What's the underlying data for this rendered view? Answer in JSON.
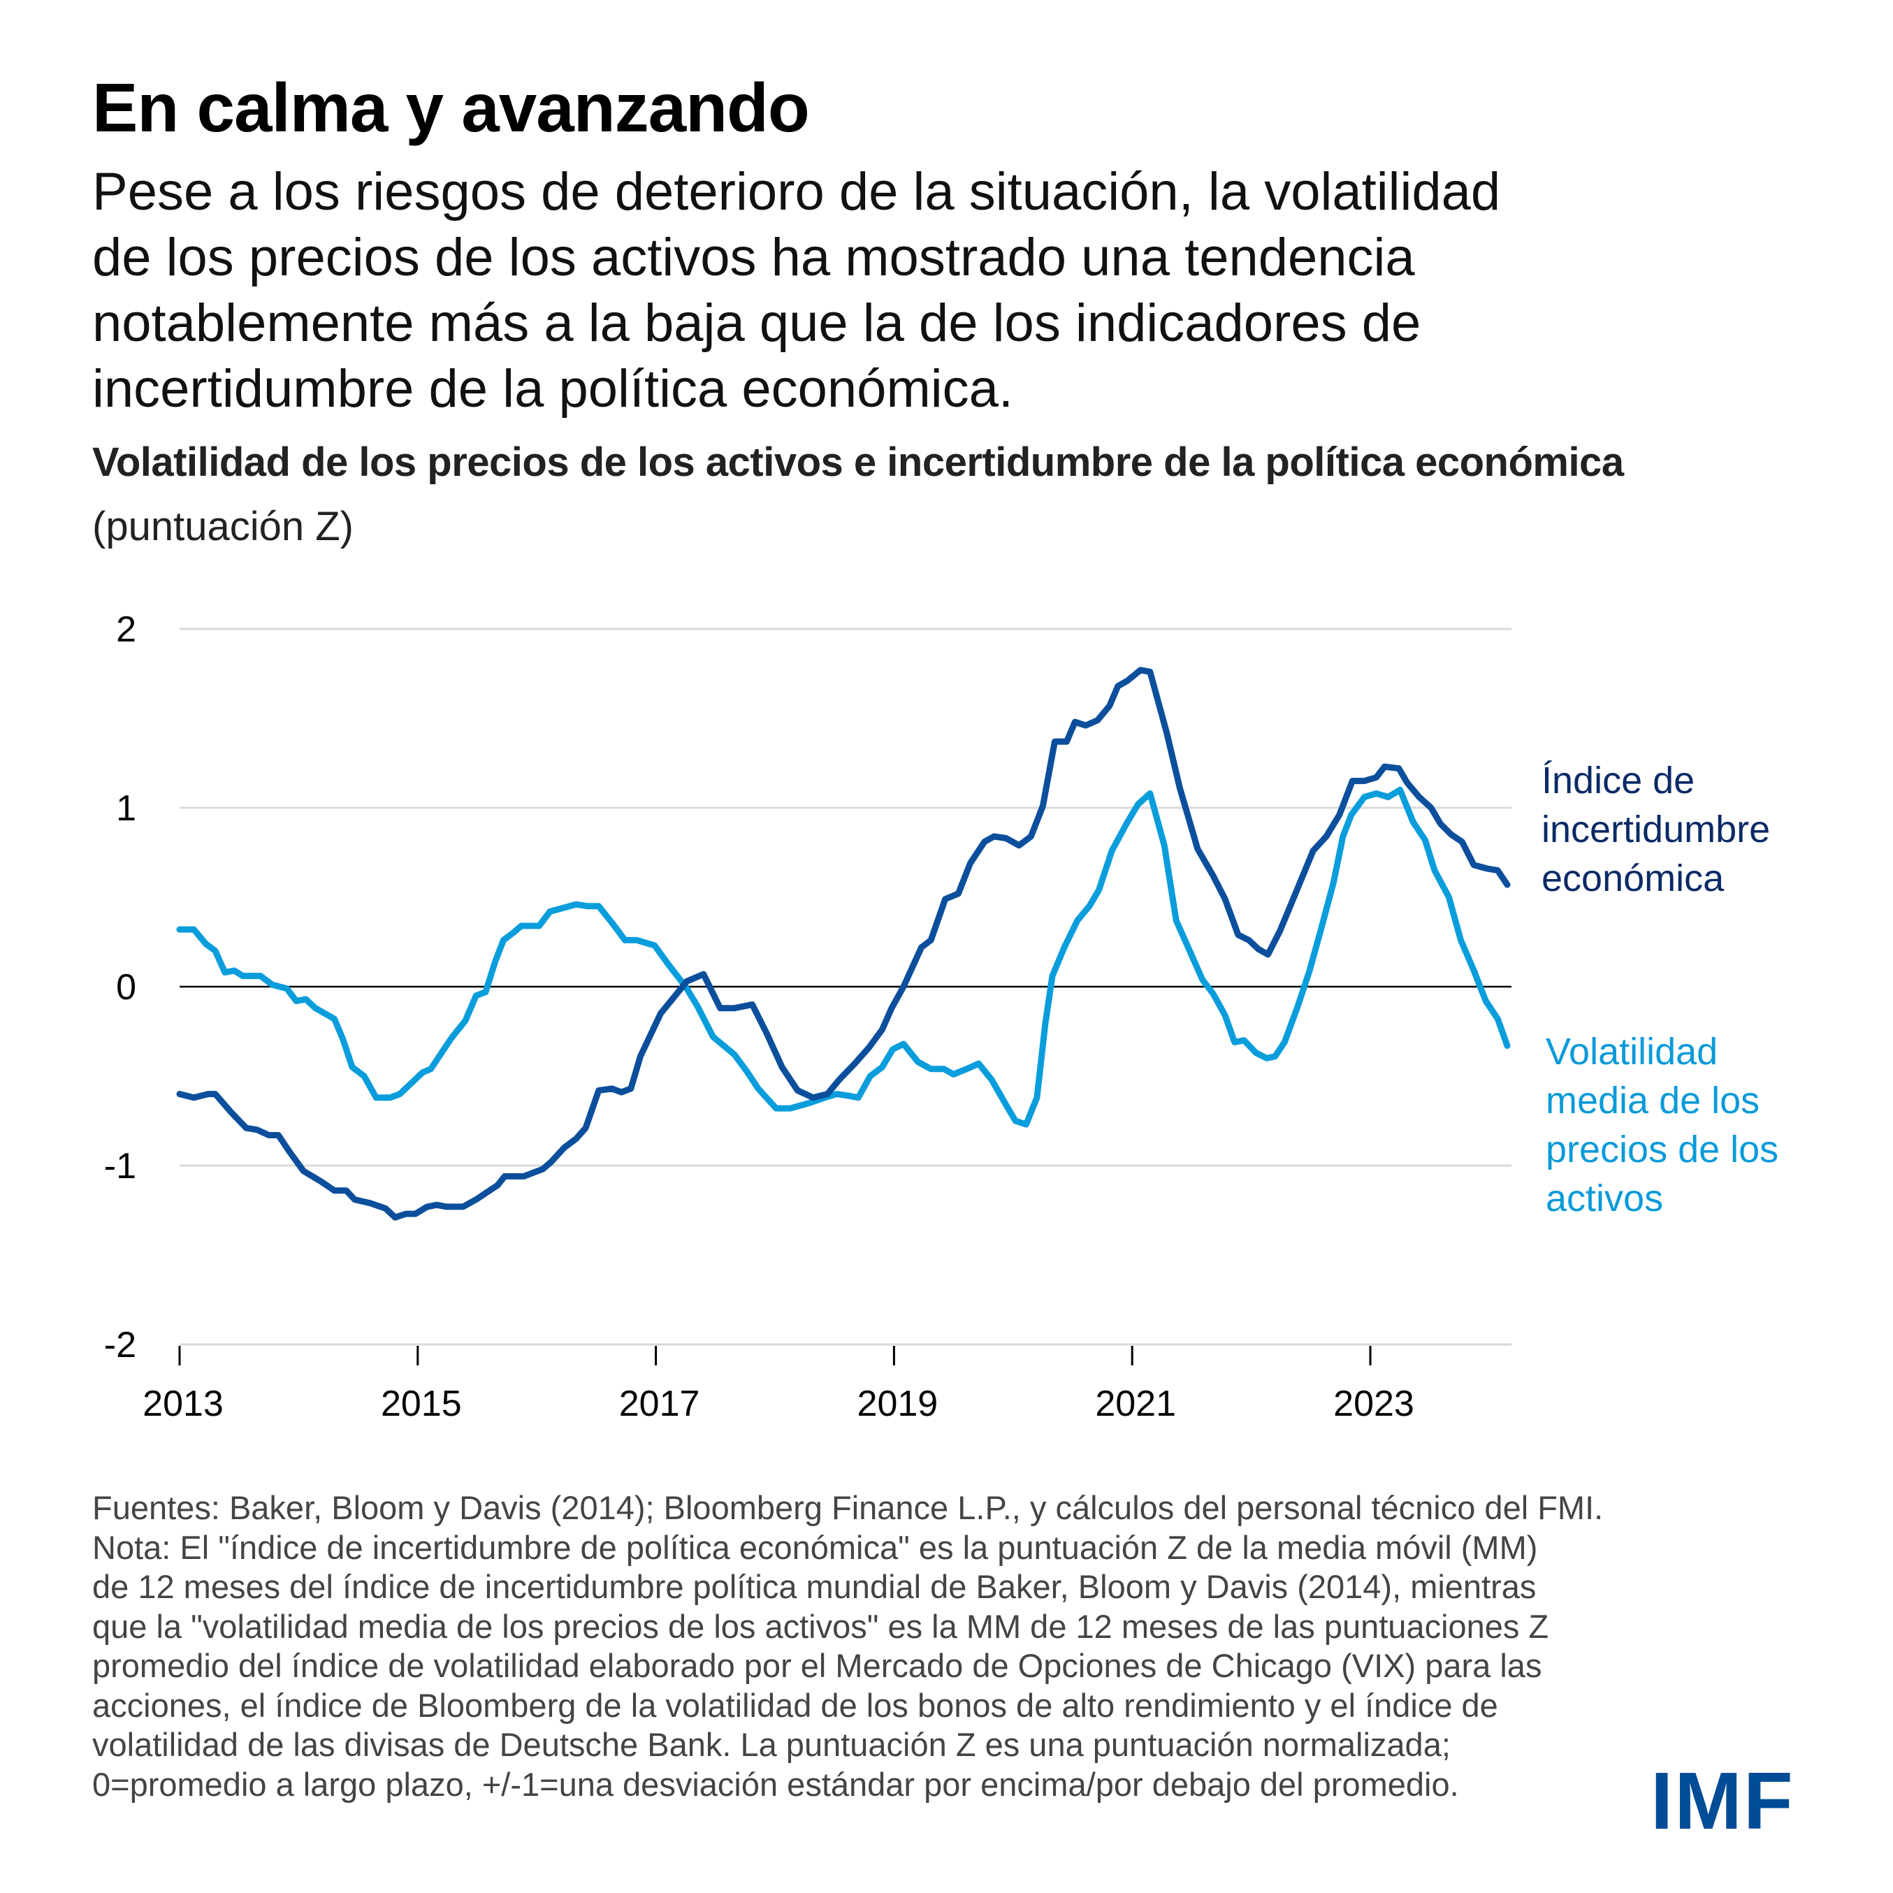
{
  "header": {
    "title": "En calma y avanzando",
    "subtitle_lines": [
      "Pese a los riesgos de deterioro de la situación, la volatilidad",
      "de los precios de los activos ha mostrado una tendencia",
      "notablemente más a la baja que la de los indicadores de",
      "incertidumbre de la política económica."
    ]
  },
  "legend": {
    "epu_lines": [
      "Índice de",
      "incertidumbre",
      "económica"
    ],
    "vol_lines": [
      "Volatilidad",
      "media de los",
      "precios de los",
      "activos"
    ]
  },
  "footnote_lines": [
    "Fuentes: Baker, Bloom y Davis (2014); Bloomberg Finance L.P., y cálculos del personal técnico del FMI.",
    "Nota: El \"índice de incertidumbre de política económica\" es la puntuación Z de la media móvil (MM)",
    "de 12 meses del índice de incertidumbre política mundial de Baker, Bloom y Davis (2014), mientras",
    "que la \"volatilidad media de los precios de los activos\" es la MM de 12 meses de las puntuaciones Z",
    "promedio del índice de volatilidad elaborado por el Mercado de Opciones de Chicago (VIX) para las",
    "acciones, el índice de Bloomberg de la volatilidad de los bonos de alto rendimiento y el índice de",
    "volatilidad de las divisas de Deutsche Bank. La puntuación Z es una puntuación normalizada;",
    "0=promedio a largo plazo, +/-1=una desviación estándar por encima/por debajo del promedio."
  ],
  "logo": "IMF",
  "colors": {
    "epu": "#0b4f9c",
    "vol": "#0a9ddc",
    "epu_label": "#0a2a66",
    "vol_label": "#0a9ad9",
    "grid": "#d9d9d9",
    "zero": "#000000"
  },
  "chart_data": {
    "type": "line",
    "title": "Volatilidad de los precios de los activos e incertidumbre de la política económica",
    "subtitle": "(puntuación Z)",
    "xlabel": "",
    "ylabel": "",
    "xlim": [
      2013.0,
      2024.2
    ],
    "ylim": [
      -2,
      2
    ],
    "yticks": [
      2,
      1,
      0,
      -1,
      -2
    ],
    "ytick_labels": [
      "2",
      "1",
      "0",
      "-1",
      "-2"
    ],
    "xticks": [
      2013,
      2015,
      2017,
      2019,
      2021,
      2023
    ],
    "xtick_labels": [
      "2013",
      "2015",
      "2017",
      "2019",
      "2021",
      "2023"
    ],
    "grid": true,
    "legend_placement": "right (inline labels)",
    "series": [
      {
        "name": "Índice de incertidumbre económica",
        "points": [
          [
            2013.0,
            -0.6
          ],
          [
            2013.12,
            -0.62
          ],
          [
            2013.24,
            -0.6
          ],
          [
            2013.3,
            -0.6
          ],
          [
            2013.43,
            -0.7
          ],
          [
            2013.56,
            -0.79
          ],
          [
            2013.65,
            -0.8
          ],
          [
            2013.75,
            -0.83
          ],
          [
            2013.83,
            -0.83
          ],
          [
            2013.92,
            -0.92
          ],
          [
            2014.04,
            -1.03
          ],
          [
            2014.19,
            -1.09
          ],
          [
            2014.3,
            -1.14
          ],
          [
            2014.4,
            -1.14
          ],
          [
            2014.47,
            -1.19
          ],
          [
            2014.6,
            -1.21
          ],
          [
            2014.73,
            -1.24
          ],
          [
            2014.81,
            -1.29
          ],
          [
            2014.9,
            -1.27
          ],
          [
            2014.98,
            -1.27
          ],
          [
            2015.08,
            -1.23
          ],
          [
            2015.16,
            -1.22
          ],
          [
            2015.24,
            -1.23
          ],
          [
            2015.38,
            -1.23
          ],
          [
            2015.49,
            -1.19
          ],
          [
            2015.58,
            -1.15
          ],
          [
            2015.67,
            -1.11
          ],
          [
            2015.73,
            -1.06
          ],
          [
            2015.85,
            -1.06
          ],
          [
            2015.89,
            -1.06
          ],
          [
            2016.05,
            -1.02
          ],
          [
            2016.12,
            -0.98
          ],
          [
            2016.23,
            -0.9
          ],
          [
            2016.33,
            -0.85
          ],
          [
            2016.41,
            -0.79
          ],
          [
            2016.52,
            -0.58
          ],
          [
            2016.63,
            -0.57
          ],
          [
            2016.71,
            -0.59
          ],
          [
            2016.79,
            -0.57
          ],
          [
            2016.87,
            -0.39
          ],
          [
            2017.04,
            -0.15
          ],
          [
            2017.15,
            -0.06
          ],
          [
            2017.26,
            0.03
          ],
          [
            2017.4,
            0.07
          ],
          [
            2017.54,
            -0.12
          ],
          [
            2017.66,
            -0.12
          ],
          [
            2017.81,
            -0.1
          ],
          [
            2017.93,
            -0.26
          ],
          [
            2018.06,
            -0.45
          ],
          [
            2018.19,
            -0.58
          ],
          [
            2018.32,
            -0.62
          ],
          [
            2018.44,
            -0.6
          ],
          [
            2018.54,
            -0.52
          ],
          [
            2018.67,
            -0.43
          ],
          [
            2018.79,
            -0.34
          ],
          [
            2018.9,
            -0.24
          ],
          [
            2018.98,
            -0.12
          ],
          [
            2019.08,
            0.0
          ],
          [
            2019.23,
            0.22
          ],
          [
            2019.31,
            0.26
          ],
          [
            2019.43,
            0.49
          ],
          [
            2019.54,
            0.52
          ],
          [
            2019.64,
            0.69
          ],
          [
            2019.76,
            0.81
          ],
          [
            2019.84,
            0.84
          ],
          [
            2019.94,
            0.83
          ],
          [
            2020.05,
            0.79
          ],
          [
            2020.15,
            0.84
          ],
          [
            2020.25,
            1.01
          ],
          [
            2020.35,
            1.37
          ],
          [
            2020.45,
            1.37
          ],
          [
            2020.52,
            1.48
          ],
          [
            2020.61,
            1.46
          ],
          [
            2020.71,
            1.49
          ],
          [
            2020.81,
            1.57
          ],
          [
            2020.88,
            1.68
          ],
          [
            2020.96,
            1.71
          ],
          [
            2021.07,
            1.77
          ],
          [
            2021.15,
            1.76
          ],
          [
            2021.29,
            1.42
          ],
          [
            2021.4,
            1.11
          ],
          [
            2021.55,
            0.77
          ],
          [
            2021.68,
            0.62
          ],
          [
            2021.78,
            0.49
          ],
          [
            2021.89,
            0.29
          ],
          [
            2021.98,
            0.26
          ],
          [
            2022.06,
            0.21
          ],
          [
            2022.14,
            0.18
          ],
          [
            2022.24,
            0.31
          ],
          [
            2022.34,
            0.47
          ],
          [
            2022.52,
            0.76
          ],
          [
            2022.63,
            0.84
          ],
          [
            2022.74,
            0.96
          ],
          [
            2022.85,
            1.15
          ],
          [
            2022.95,
            1.15
          ],
          [
            2023.05,
            1.17
          ],
          [
            2023.12,
            1.23
          ],
          [
            2023.24,
            1.22
          ],
          [
            2023.31,
            1.14
          ],
          [
            2023.41,
            1.06
          ],
          [
            2023.51,
            1.0
          ],
          [
            2023.59,
            0.91
          ],
          [
            2023.68,
            0.85
          ],
          [
            2023.77,
            0.81
          ],
          [
            2023.87,
            0.68
          ],
          [
            2023.98,
            0.66
          ],
          [
            2024.07,
            0.65
          ],
          [
            2024.15,
            0.57
          ]
        ]
      },
      {
        "name": "Volatilidad media de los precios de los activos",
        "points": [
          [
            2013.0,
            0.32
          ],
          [
            2013.12,
            0.32
          ],
          [
            2013.22,
            0.24
          ],
          [
            2013.3,
            0.2
          ],
          [
            2013.38,
            0.08
          ],
          [
            2013.46,
            0.09
          ],
          [
            2013.53,
            0.06
          ],
          [
            2013.68,
            0.06
          ],
          [
            2013.78,
            0.01
          ],
          [
            2013.9,
            -0.01
          ],
          [
            2013.98,
            -0.08
          ],
          [
            2014.06,
            -0.07
          ],
          [
            2014.14,
            -0.12
          ],
          [
            2014.3,
            -0.18
          ],
          [
            2014.37,
            -0.29
          ],
          [
            2014.45,
            -0.45
          ],
          [
            2014.55,
            -0.5
          ],
          [
            2014.65,
            -0.62
          ],
          [
            2014.77,
            -0.62
          ],
          [
            2014.85,
            -0.6
          ],
          [
            2015.04,
            -0.48
          ],
          [
            2015.11,
            -0.46
          ],
          [
            2015.28,
            -0.29
          ],
          [
            2015.4,
            -0.19
          ],
          [
            2015.49,
            -0.05
          ],
          [
            2015.57,
            -0.03
          ],
          [
            2015.65,
            0.14
          ],
          [
            2015.72,
            0.26
          ],
          [
            2015.8,
            0.3
          ],
          [
            2015.87,
            0.34
          ],
          [
            2016.02,
            0.34
          ],
          [
            2016.11,
            0.42
          ],
          [
            2016.33,
            0.46
          ],
          [
            2016.43,
            0.45
          ],
          [
            2016.52,
            0.45
          ],
          [
            2016.64,
            0.35
          ],
          [
            2016.74,
            0.26
          ],
          [
            2016.84,
            0.26
          ],
          [
            2016.99,
            0.23
          ],
          [
            2017.11,
            0.12
          ],
          [
            2017.25,
            0.0
          ],
          [
            2017.35,
            -0.11
          ],
          [
            2017.48,
            -0.28
          ],
          [
            2017.66,
            -0.38
          ],
          [
            2017.76,
            -0.47
          ],
          [
            2017.86,
            -0.57
          ],
          [
            2018.01,
            -0.68
          ],
          [
            2018.13,
            -0.68
          ],
          [
            2018.29,
            -0.65
          ],
          [
            2018.42,
            -0.62
          ],
          [
            2018.52,
            -0.6
          ],
          [
            2018.62,
            -0.61
          ],
          [
            2018.7,
            -0.62
          ],
          [
            2018.8,
            -0.5
          ],
          [
            2018.9,
            -0.45
          ],
          [
            2018.99,
            -0.35
          ],
          [
            2019.08,
            -0.32
          ],
          [
            2019.2,
            -0.42
          ],
          [
            2019.31,
            -0.46
          ],
          [
            2019.42,
            -0.46
          ],
          [
            2019.5,
            -0.49
          ],
          [
            2019.61,
            -0.46
          ],
          [
            2019.71,
            -0.43
          ],
          [
            2019.82,
            -0.52
          ],
          [
            2019.94,
            -0.66
          ],
          [
            2020.02,
            -0.75
          ],
          [
            2020.11,
            -0.77
          ],
          [
            2020.2,
            -0.62
          ],
          [
            2020.27,
            -0.21
          ],
          [
            2020.33,
            0.06
          ],
          [
            2020.43,
            0.22
          ],
          [
            2020.54,
            0.37
          ],
          [
            2020.64,
            0.45
          ],
          [
            2020.72,
            0.54
          ],
          [
            2020.83,
            0.76
          ],
          [
            2020.96,
            0.92
          ],
          [
            2021.05,
            1.02
          ],
          [
            2021.15,
            1.08
          ],
          [
            2021.27,
            0.79
          ],
          [
            2021.37,
            0.37
          ],
          [
            2021.47,
            0.22
          ],
          [
            2021.59,
            0.04
          ],
          [
            2021.68,
            -0.04
          ],
          [
            2021.78,
            -0.16
          ],
          [
            2021.86,
            -0.31
          ],
          [
            2021.94,
            -0.3
          ],
          [
            2022.04,
            -0.37
          ],
          [
            2022.13,
            -0.4
          ],
          [
            2022.2,
            -0.39
          ],
          [
            2022.28,
            -0.31
          ],
          [
            2022.39,
            -0.11
          ],
          [
            2022.49,
            0.09
          ],
          [
            2022.59,
            0.33
          ],
          [
            2022.69,
            0.58
          ],
          [
            2022.77,
            0.84
          ],
          [
            2022.84,
            0.96
          ],
          [
            2022.95,
            1.06
          ],
          [
            2023.05,
            1.08
          ],
          [
            2023.15,
            1.06
          ],
          [
            2023.25,
            1.1
          ],
          [
            2023.36,
            0.92
          ],
          [
            2023.46,
            0.82
          ],
          [
            2023.54,
            0.65
          ],
          [
            2023.66,
            0.5
          ],
          [
            2023.76,
            0.26
          ],
          [
            2023.87,
            0.09
          ],
          [
            2023.97,
            -0.08
          ],
          [
            2024.07,
            -0.18
          ],
          [
            2024.15,
            -0.33
          ]
        ]
      }
    ]
  }
}
